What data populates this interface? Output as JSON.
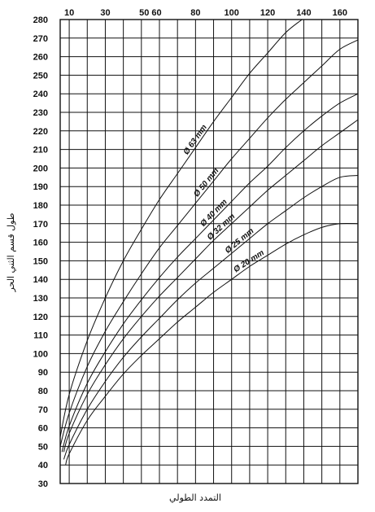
{
  "chart_data": {
    "type": "line",
    "title": "",
    "xlabel": "التمدد الطولي",
    "ylabel": "طول قسم الثني الحر",
    "x_ticks": [
      {
        "value": 10,
        "label": "10"
      },
      {
        "value": 30,
        "label": "30"
      },
      {
        "value": 50,
        "label": "50 60"
      },
      {
        "value": 80,
        "label": "80"
      },
      {
        "value": 100,
        "label": "100"
      },
      {
        "value": 120,
        "label": "120"
      },
      {
        "value": 140,
        "label": "140"
      },
      {
        "value": 160,
        "label": "160"
      }
    ],
    "xlim": [
      5,
      170
    ],
    "ylim": [
      30,
      280
    ],
    "y_ticks": [
      30,
      40,
      50,
      60,
      70,
      80,
      90,
      100,
      110,
      120,
      130,
      140,
      150,
      160,
      170,
      180,
      190,
      200,
      210,
      220,
      230,
      240,
      250,
      260,
      270,
      280
    ],
    "grid": true,
    "series": [
      {
        "name": "Ø 63 mm",
        "x": [
          5,
          10,
          20,
          30,
          40,
          50,
          60,
          70,
          80,
          90,
          100,
          110,
          120,
          130,
          139
        ],
        "y": [
          55,
          78,
          107,
          130,
          150,
          167,
          183,
          197,
          211,
          225,
          238,
          251,
          262,
          273,
          280
        ]
      },
      {
        "name": "Ø 50 mm",
        "x": [
          5,
          10,
          20,
          30,
          40,
          50,
          60,
          70,
          80,
          90,
          100,
          110,
          120,
          130,
          140,
          150,
          160,
          170
        ],
        "y": [
          50,
          68,
          93,
          112,
          128,
          143,
          157,
          169,
          181,
          193,
          205,
          216,
          227,
          237,
          246,
          255,
          264,
          269
        ]
      },
      {
        "name": "Ø 40 mm",
        "x": [
          6,
          10,
          20,
          30,
          40,
          50,
          60,
          70,
          80,
          90,
          100,
          110,
          120,
          130,
          140,
          150,
          160,
          170
        ],
        "y": [
          47,
          61,
          84,
          101,
          116,
          129,
          141,
          152,
          162,
          172,
          182,
          192,
          201,
          211,
          220,
          228,
          235,
          240
        ]
      },
      {
        "name": "Ø 32 mm",
        "x": [
          7,
          10,
          20,
          30,
          40,
          50,
          60,
          70,
          80,
          90,
          100,
          110,
          120,
          130,
          140,
          150,
          160,
          170
        ],
        "y": [
          47,
          57,
          78,
          94,
          108,
          120,
          131,
          141,
          151,
          161,
          170,
          179,
          188,
          196,
          204,
          212,
          219,
          226
        ]
      },
      {
        "name": "Ø 25 mm",
        "x": [
          7,
          10,
          20,
          30,
          40,
          50,
          60,
          70,
          80,
          90,
          100,
          110,
          120,
          130,
          140,
          150,
          160,
          170
        ],
        "y": [
          43,
          51,
          70,
          85,
          98,
          109,
          119,
          129,
          138,
          146,
          154,
          162,
          170,
          177,
          184,
          190,
          195,
          196
        ]
      },
      {
        "name": "Ø 20 mm",
        "x": [
          8,
          10,
          20,
          30,
          40,
          50,
          60,
          70,
          80,
          90,
          100,
          110,
          120,
          130,
          140,
          150,
          160,
          170
        ],
        "y": [
          40,
          46,
          64,
          77,
          89,
          99,
          108,
          117,
          125,
          133,
          140,
          147,
          153,
          159,
          164,
          168,
          170,
          170
        ]
      }
    ],
    "series_label_anchor_x": [
      82,
      88,
      92,
      96,
      106,
      111
    ]
  }
}
